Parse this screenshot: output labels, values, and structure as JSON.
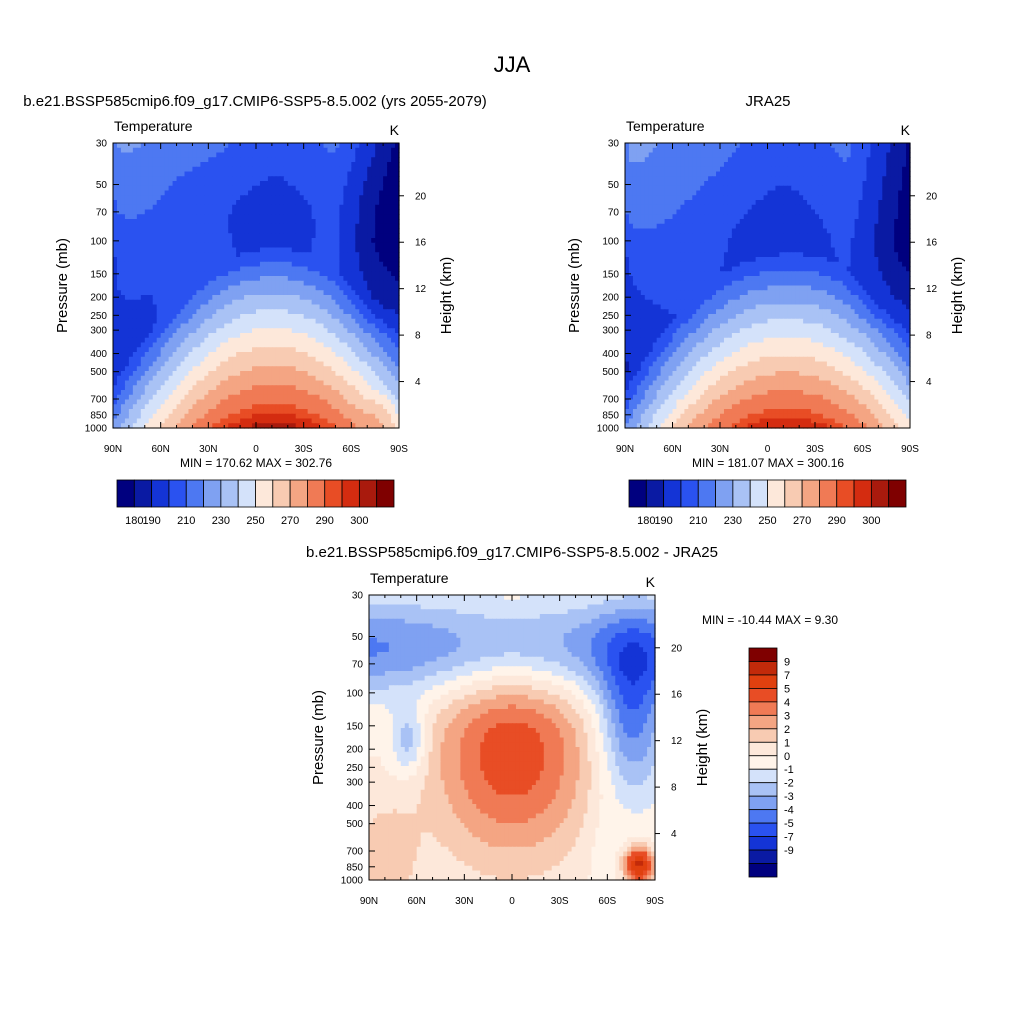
{
  "figure": {
    "title": "JJA"
  },
  "colors": {
    "abs_scale": [
      "#00007f",
      "#0a1aa3",
      "#1434d6",
      "#2a52f0",
      "#4d78f2",
      "#7fa1f2",
      "#a9c2f5",
      "#d4e2fa",
      "#fde8da",
      "#f8cbb2",
      "#f4a583",
      "#f07a55",
      "#e84d25",
      "#d42c10",
      "#a91a0d",
      "#7f0000"
    ],
    "diff_scale": [
      "#00007f",
      "#0a1aa3",
      "#1434d6",
      "#2a52f0",
      "#4d78f2",
      "#7fa1f2",
      "#a9c2f5",
      "#d4e2fa",
      "#fff4ea",
      "#fde8da",
      "#f8cbb2",
      "#f4a583",
      "#f07a55",
      "#e84d25",
      "#e0400f",
      "#c22a0a",
      "#7f0000"
    ]
  },
  "chart_data": [
    {
      "type": "heatmap",
      "title": "b.e21.BSSP585cmip6.f09_g17.CMIP6-SSP5-8.5.002 (yrs 2055-2079)",
      "subtitle_left": "Temperature",
      "subtitle_right": "K",
      "ylabel": "Pressure (mb)",
      "ylabel_right": "Height (km)",
      "x_ticks": [
        "90N",
        "60N",
        "30N",
        "0",
        "30S",
        "60S",
        "90S"
      ],
      "y_ticks": [
        "30",
        "50",
        "70",
        "100",
        "150",
        "200",
        "250",
        "300",
        "400",
        "500",
        "700",
        "850",
        "1000"
      ],
      "y_right_ticks": [
        "20",
        "16",
        "12",
        "8",
        "4"
      ],
      "stats": "MIN = 170.62  MAX = 302.76",
      "colorbar_labels": [
        "180",
        "190",
        "210",
        "230",
        "250",
        "270",
        "290",
        "300"
      ],
      "levels": [
        180,
        190,
        200,
        210,
        220,
        230,
        240,
        250,
        260,
        270,
        280,
        290,
        295,
        300,
        305
      ],
      "field": "ssp585",
      "min": 170.62,
      "max": 302.76
    },
    {
      "type": "heatmap",
      "title": "JRA25",
      "subtitle_left": "Temperature",
      "subtitle_right": "K",
      "ylabel": "Pressure (mb)",
      "ylabel_right": "Height (km)",
      "x_ticks": [
        "90N",
        "60N",
        "30N",
        "0",
        "30S",
        "60S",
        "90S"
      ],
      "y_ticks": [
        "30",
        "50",
        "70",
        "100",
        "150",
        "200",
        "250",
        "300",
        "400",
        "500",
        "700",
        "850",
        "1000"
      ],
      "y_right_ticks": [
        "20",
        "16",
        "12",
        "8",
        "4"
      ],
      "stats": "MIN = 181.07  MAX = 300.16",
      "colorbar_labels": [
        "180",
        "190",
        "210",
        "230",
        "250",
        "270",
        "290",
        "300"
      ],
      "levels": [
        180,
        190,
        200,
        210,
        220,
        230,
        240,
        250,
        260,
        270,
        280,
        290,
        295,
        300,
        305
      ],
      "field": "jra25",
      "min": 181.07,
      "max": 300.16
    },
    {
      "type": "heatmap",
      "title": "b.e21.BSSP585cmip6.f09_g17.CMIP6-SSP5-8.5.002 - JRA25",
      "subtitle_left": "Temperature",
      "subtitle_right": "K",
      "ylabel": "Pressure (mb)",
      "ylabel_right": "Height (km)",
      "x_ticks": [
        "90N",
        "60N",
        "30N",
        "0",
        "30S",
        "60S",
        "90S"
      ],
      "y_ticks": [
        "30",
        "50",
        "70",
        "100",
        "150",
        "200",
        "250",
        "300",
        "400",
        "500",
        "700",
        "850",
        "1000"
      ],
      "y_right_ticks": [
        "20",
        "16",
        "12",
        "8",
        "4"
      ],
      "stats": "MIN = -10.44  MAX =   9.30",
      "colorbar_labels": [
        "9",
        "7",
        "5",
        "4",
        "3",
        "2",
        "1",
        "0",
        "-1",
        "-2",
        "-3",
        "-4",
        "-5",
        "-7",
        "-9"
      ],
      "levels": [
        -9,
        -7,
        -5,
        -4,
        -3,
        -2,
        -1,
        0,
        1,
        2,
        3,
        4,
        5,
        7,
        9
      ],
      "field": "diff",
      "min": -10.44,
      "max": 9.3
    }
  ]
}
